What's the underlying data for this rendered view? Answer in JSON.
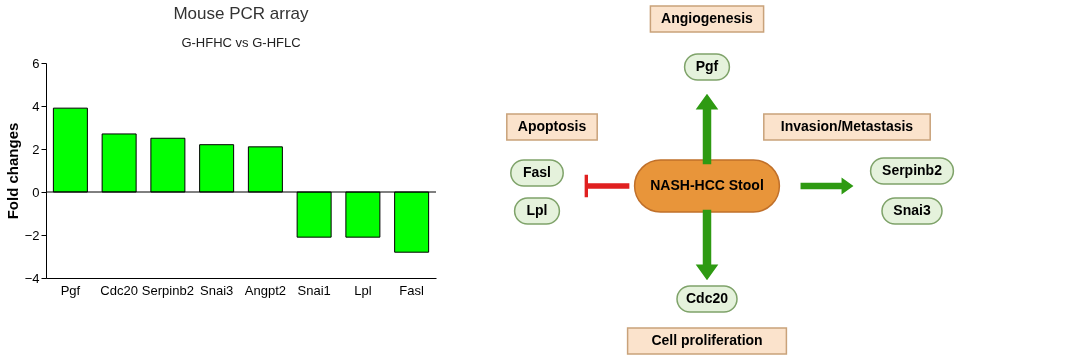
{
  "chart_data": [
    {
      "type": "bar",
      "title": "Mouse PCR array",
      "subtitle": "G-HFHC vs G-HFLC",
      "ylabel": "Fold changes",
      "categories": [
        "Pgf",
        "Cdc20",
        "Serpinb2",
        "Snai3",
        "Angpt2",
        "Snai1",
        "Lpl",
        "Fasl"
      ],
      "values": [
        3.9,
        2.7,
        2.5,
        2.2,
        2.1,
        -2.1,
        -2.1,
        -2.8
      ],
      "color": "#00ff00",
      "ylim": [
        -4,
        6
      ],
      "yticks": [
        -4,
        -2,
        0,
        2,
        4,
        6
      ],
      "ref_lines": [
        {
          "axis": "y",
          "value": 0
        }
      ],
      "legend": false
    },
    {
      "type": "other",
      "annotations": [
        "Angiogenesis",
        "Pgf",
        "Apoptosis",
        "Invasion/Metastasis",
        "Fasl",
        "NASH-HCC Stool",
        "Serpinb2",
        "Lpl",
        "Snai3",
        "Cdc20",
        "Cell proliferation"
      ]
    }
  ]
}
